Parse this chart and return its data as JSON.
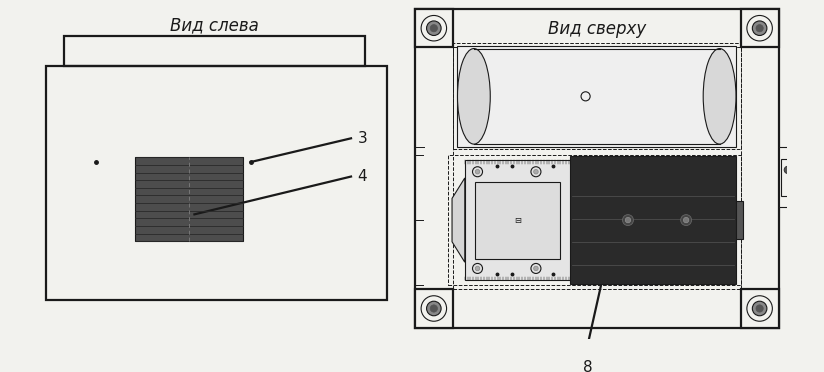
{
  "bg_color": "#f2f2ee",
  "line_color": "#1a1a1a",
  "dark_fill": "#3a3a3a",
  "med_fill": "#707070",
  "light_fill": "#e8e8e8",
  "white": "#ffffff",
  "title_left": "Вид слева",
  "title_right": "Вид сверху",
  "label_3": "3",
  "label_4": "4",
  "label_8": "8",
  "font_size_title": 12,
  "font_size_label": 11,
  "lw_main": 1.6,
  "lw_thin": 0.8,
  "lw_dot": 0.7
}
